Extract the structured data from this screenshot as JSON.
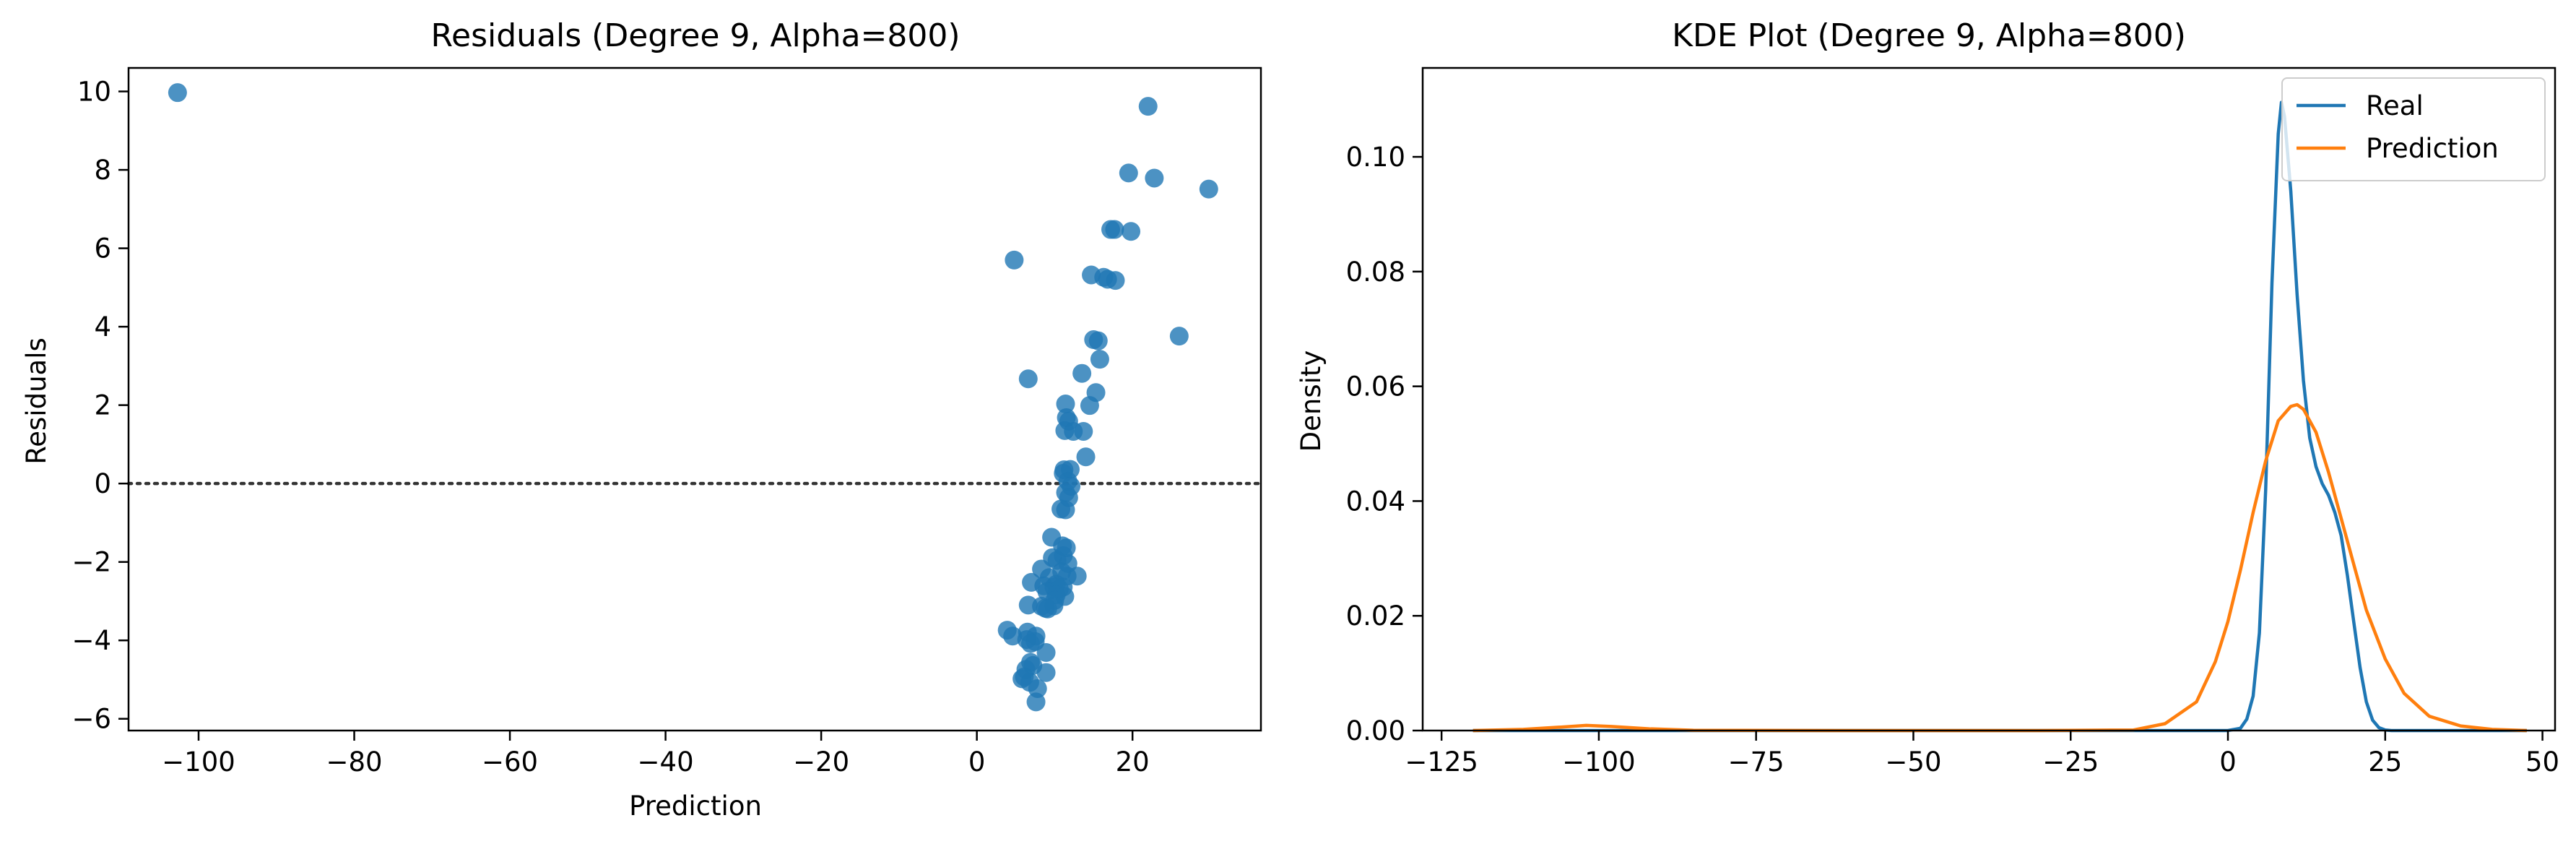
{
  "chart_data": [
    {
      "type": "scatter",
      "title": "Residuals (Degree 9, Alpha=800)",
      "xlabel": "Prediction",
      "ylabel": "Residuals",
      "xlim": [
        -109,
        36.5
      ],
      "ylim": [
        -6.3,
        10.6
      ],
      "xticks": [
        -100,
        -80,
        -60,
        -40,
        -20,
        0,
        20
      ],
      "xtick_labels": [
        "−100",
        "−80",
        "−60",
        "−40",
        "−20",
        "0",
        "20"
      ],
      "yticks": [
        -6,
        -4,
        -2,
        0,
        2,
        4,
        6,
        8,
        10
      ],
      "ytick_labels": [
        "−6",
        "−4",
        "−2",
        "0",
        "2",
        "4",
        "6",
        "8",
        "10"
      ],
      "reference_line": {
        "y": 0,
        "style": "dotted",
        "color": "#333333"
      },
      "marker_color": "#1f77b4",
      "grid": false,
      "points": [
        [
          -102.7,
          9.97
        ],
        [
          22.0,
          9.62
        ],
        [
          19.5,
          7.92
        ],
        [
          22.8,
          7.79
        ],
        [
          29.8,
          7.51
        ],
        [
          17.2,
          6.48
        ],
        [
          17.7,
          6.48
        ],
        [
          19.8,
          6.43
        ],
        [
          4.8,
          5.7
        ],
        [
          14.7,
          5.32
        ],
        [
          16.3,
          5.26
        ],
        [
          16.8,
          5.21
        ],
        [
          17.8,
          5.18
        ],
        [
          15.0,
          3.67
        ],
        [
          15.6,
          3.64
        ],
        [
          26.0,
          3.76
        ],
        [
          15.8,
          3.17
        ],
        [
          13.5,
          2.81
        ],
        [
          6.6,
          2.67
        ],
        [
          15.3,
          2.32
        ],
        [
          14.5,
          1.99
        ],
        [
          11.4,
          2.03
        ],
        [
          11.5,
          1.68
        ],
        [
          11.8,
          1.59
        ],
        [
          11.3,
          1.35
        ],
        [
          12.4,
          1.33
        ],
        [
          13.7,
          1.33
        ],
        [
          14.0,
          0.68
        ],
        [
          11.2,
          0.35
        ],
        [
          12.0,
          0.36
        ],
        [
          11.1,
          0.26
        ],
        [
          11.7,
          0.06
        ],
        [
          12.1,
          -0.07
        ],
        [
          11.4,
          -0.23
        ],
        [
          11.8,
          -0.36
        ],
        [
          10.8,
          -0.65
        ],
        [
          11.4,
          -0.67
        ],
        [
          9.6,
          -1.37
        ],
        [
          11.0,
          -1.59
        ],
        [
          11.5,
          -1.64
        ],
        [
          11.1,
          -1.84
        ],
        [
          9.7,
          -1.89
        ],
        [
          10.3,
          -1.96
        ],
        [
          11.7,
          -2.04
        ],
        [
          8.3,
          -2.18
        ],
        [
          10.9,
          -2.25
        ],
        [
          12.9,
          -2.36
        ],
        [
          11.6,
          -2.36
        ],
        [
          9.3,
          -2.4
        ],
        [
          7.0,
          -2.52
        ],
        [
          10.2,
          -2.57
        ],
        [
          8.6,
          -2.61
        ],
        [
          9.9,
          -2.64
        ],
        [
          11.1,
          -2.64
        ],
        [
          10.6,
          -2.69
        ],
        [
          9.0,
          -2.76
        ],
        [
          10.2,
          -2.84
        ],
        [
          11.3,
          -2.88
        ],
        [
          10.0,
          -2.98
        ],
        [
          6.6,
          -3.1
        ],
        [
          8.3,
          -3.13
        ],
        [
          8.8,
          -3.18
        ],
        [
          9.9,
          -3.12
        ],
        [
          9.1,
          -3.2
        ],
        [
          3.9,
          -3.74
        ],
        [
          6.5,
          -3.79
        ],
        [
          4.6,
          -3.89
        ],
        [
          7.6,
          -3.89
        ],
        [
          6.4,
          -3.98
        ],
        [
          7.5,
          -4.03
        ],
        [
          6.9,
          -4.08
        ],
        [
          8.9,
          -4.31
        ],
        [
          6.9,
          -4.56
        ],
        [
          7.2,
          -4.64
        ],
        [
          6.3,
          -4.74
        ],
        [
          8.9,
          -4.82
        ],
        [
          6.1,
          -4.93
        ],
        [
          5.8,
          -4.98
        ],
        [
          6.8,
          -5.07
        ],
        [
          7.8,
          -5.23
        ],
        [
          7.6,
          -5.57
        ]
      ]
    },
    {
      "type": "line",
      "title": "KDE Plot (Degree 9, Alpha=800)",
      "xlabel": "",
      "ylabel": "Density",
      "xlim": [
        -128,
        52
      ],
      "ylim": [
        0,
        0.1155
      ],
      "xticks": [
        -125,
        -100,
        -75,
        -50,
        -25,
        0,
        25,
        50
      ],
      "xtick_labels": [
        "−125",
        "−100",
        "−75",
        "−50",
        "−25",
        "0",
        "25",
        "50"
      ],
      "yticks": [
        0,
        0.02,
        0.04,
        0.06,
        0.08,
        0.1
      ],
      "ytick_labels": [
        "0.00",
        "0.02",
        "0.04",
        "0.06",
        "0.08",
        "0.10"
      ],
      "grid": false,
      "legend": {
        "position": "top-right",
        "entries": [
          "Real",
          "Prediction"
        ]
      },
      "series": [
        {
          "name": "Real",
          "color": "#1f77b4",
          "x": [
            -120,
            -5,
            0,
            2,
            3,
            4,
            5,
            6,
            7,
            8,
            8.5,
            9,
            10,
            11,
            12,
            13,
            14,
            15,
            16,
            17,
            18,
            19,
            20,
            21,
            22,
            23,
            24,
            25,
            26,
            30,
            47.5
          ],
          "y": [
            0,
            0,
            0,
            0.0004,
            0.002,
            0.006,
            0.017,
            0.042,
            0.078,
            0.104,
            0.1095,
            0.107,
            0.094,
            0.076,
            0.061,
            0.051,
            0.046,
            0.043,
            0.041,
            0.038,
            0.034,
            0.027,
            0.019,
            0.011,
            0.005,
            0.0018,
            0.0005,
            0.0001,
            0,
            0,
            0
          ]
        },
        {
          "name": "Prediction",
          "color": "#ff7f0e",
          "x": [
            -120,
            -112,
            -106,
            -102,
            -98,
            -92,
            -85,
            -60,
            -30,
            -15,
            -10,
            -5,
            -2,
            0,
            2,
            4,
            6,
            8,
            10,
            11,
            12,
            14,
            16,
            18,
            20,
            22,
            25,
            28,
            32,
            37,
            42,
            47.5
          ],
          "y": [
            0,
            0.0002,
            0.0006,
            0.0009,
            0.0007,
            0.0003,
            5e-05,
            0,
            0,
            0.0001,
            0.0012,
            0.005,
            0.012,
            0.019,
            0.028,
            0.038,
            0.047,
            0.054,
            0.0565,
            0.0568,
            0.056,
            0.052,
            0.045,
            0.037,
            0.029,
            0.021,
            0.0125,
            0.0065,
            0.0025,
            0.0008,
            0.0002,
            0
          ]
        }
      ]
    }
  ]
}
